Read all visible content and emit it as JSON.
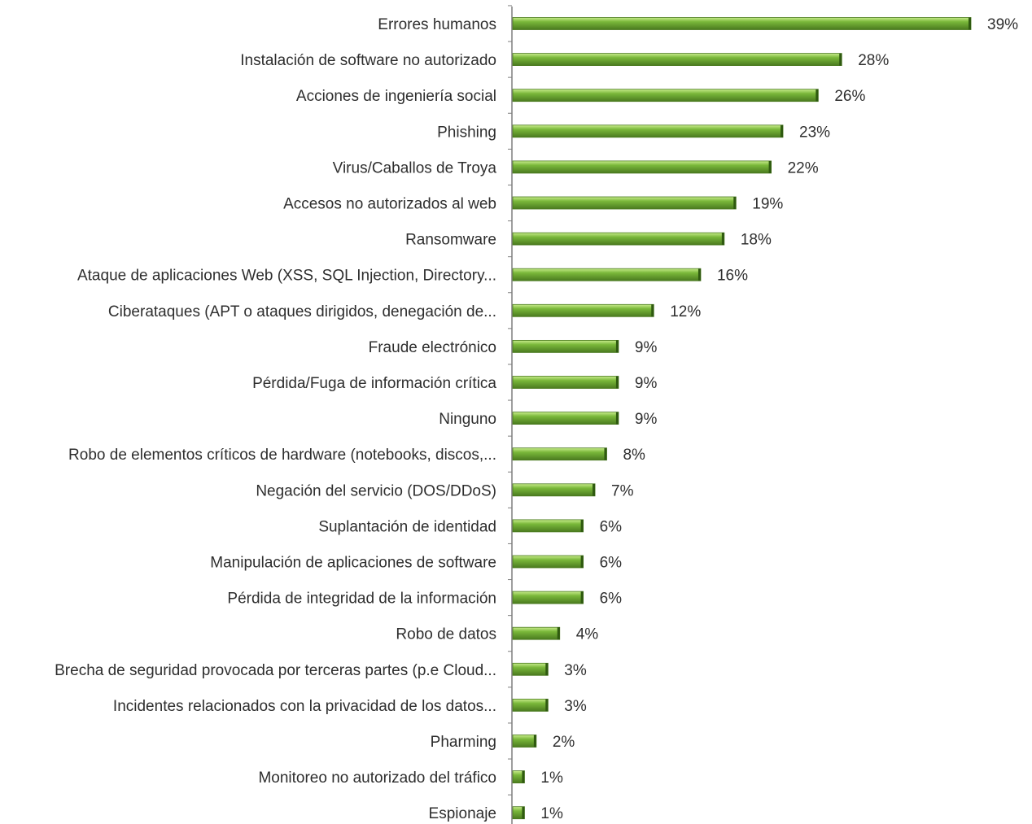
{
  "chart_data": {
    "type": "bar",
    "orientation": "horizontal",
    "title": "",
    "xlabel": "",
    "ylabel": "",
    "xlim": [
      0,
      39
    ],
    "grid": false,
    "legend": "none",
    "bar_color": "#7ab83a",
    "bar_highlight": "#c8ec8c",
    "bar_shadow": "#4a7a1f",
    "categories": [
      "Errores humanos",
      "Instalación de software no autorizado",
      "Acciones de ingeniería social",
      "Phishing",
      "Virus/Caballos de Troya",
      "Accesos no autorizados al web",
      "Ransomware",
      "Ataque de aplicaciones Web (XSS, SQL Injection, Directory...",
      "Ciberataques (APT o ataques dirigidos, denegación de...",
      "Fraude electrónico",
      "Pérdida/Fuga de información crítica",
      "Ninguno",
      "Robo de elementos críticos de hardware (notebooks, discos,...",
      "Negación del servicio (DOS/DDoS)",
      "Suplantación de identidad",
      "Manipulación de aplicaciones de software",
      "Pérdida de integridad de la información",
      "Robo de datos",
      "Brecha de seguridad provocada por terceras partes (p.e Cloud...",
      "Incidentes relacionados con la privacidad de los datos...",
      "Pharming",
      "Monitoreo no autorizado del tráfico",
      "Espionaje"
    ],
    "values": [
      39,
      28,
      26,
      23,
      22,
      19,
      18,
      16,
      12,
      9,
      9,
      9,
      8,
      7,
      6,
      6,
      6,
      4,
      3,
      3,
      2,
      1,
      1
    ],
    "value_labels": [
      "39%",
      "28%",
      "26%",
      "23%",
      "22%",
      "19%",
      "18%",
      "16%",
      "12%",
      "9%",
      "9%",
      "9%",
      "8%",
      "7%",
      "6%",
      "6%",
      "6%",
      "4%",
      "3%",
      "3%",
      "2%",
      "1%",
      "1%"
    ]
  }
}
